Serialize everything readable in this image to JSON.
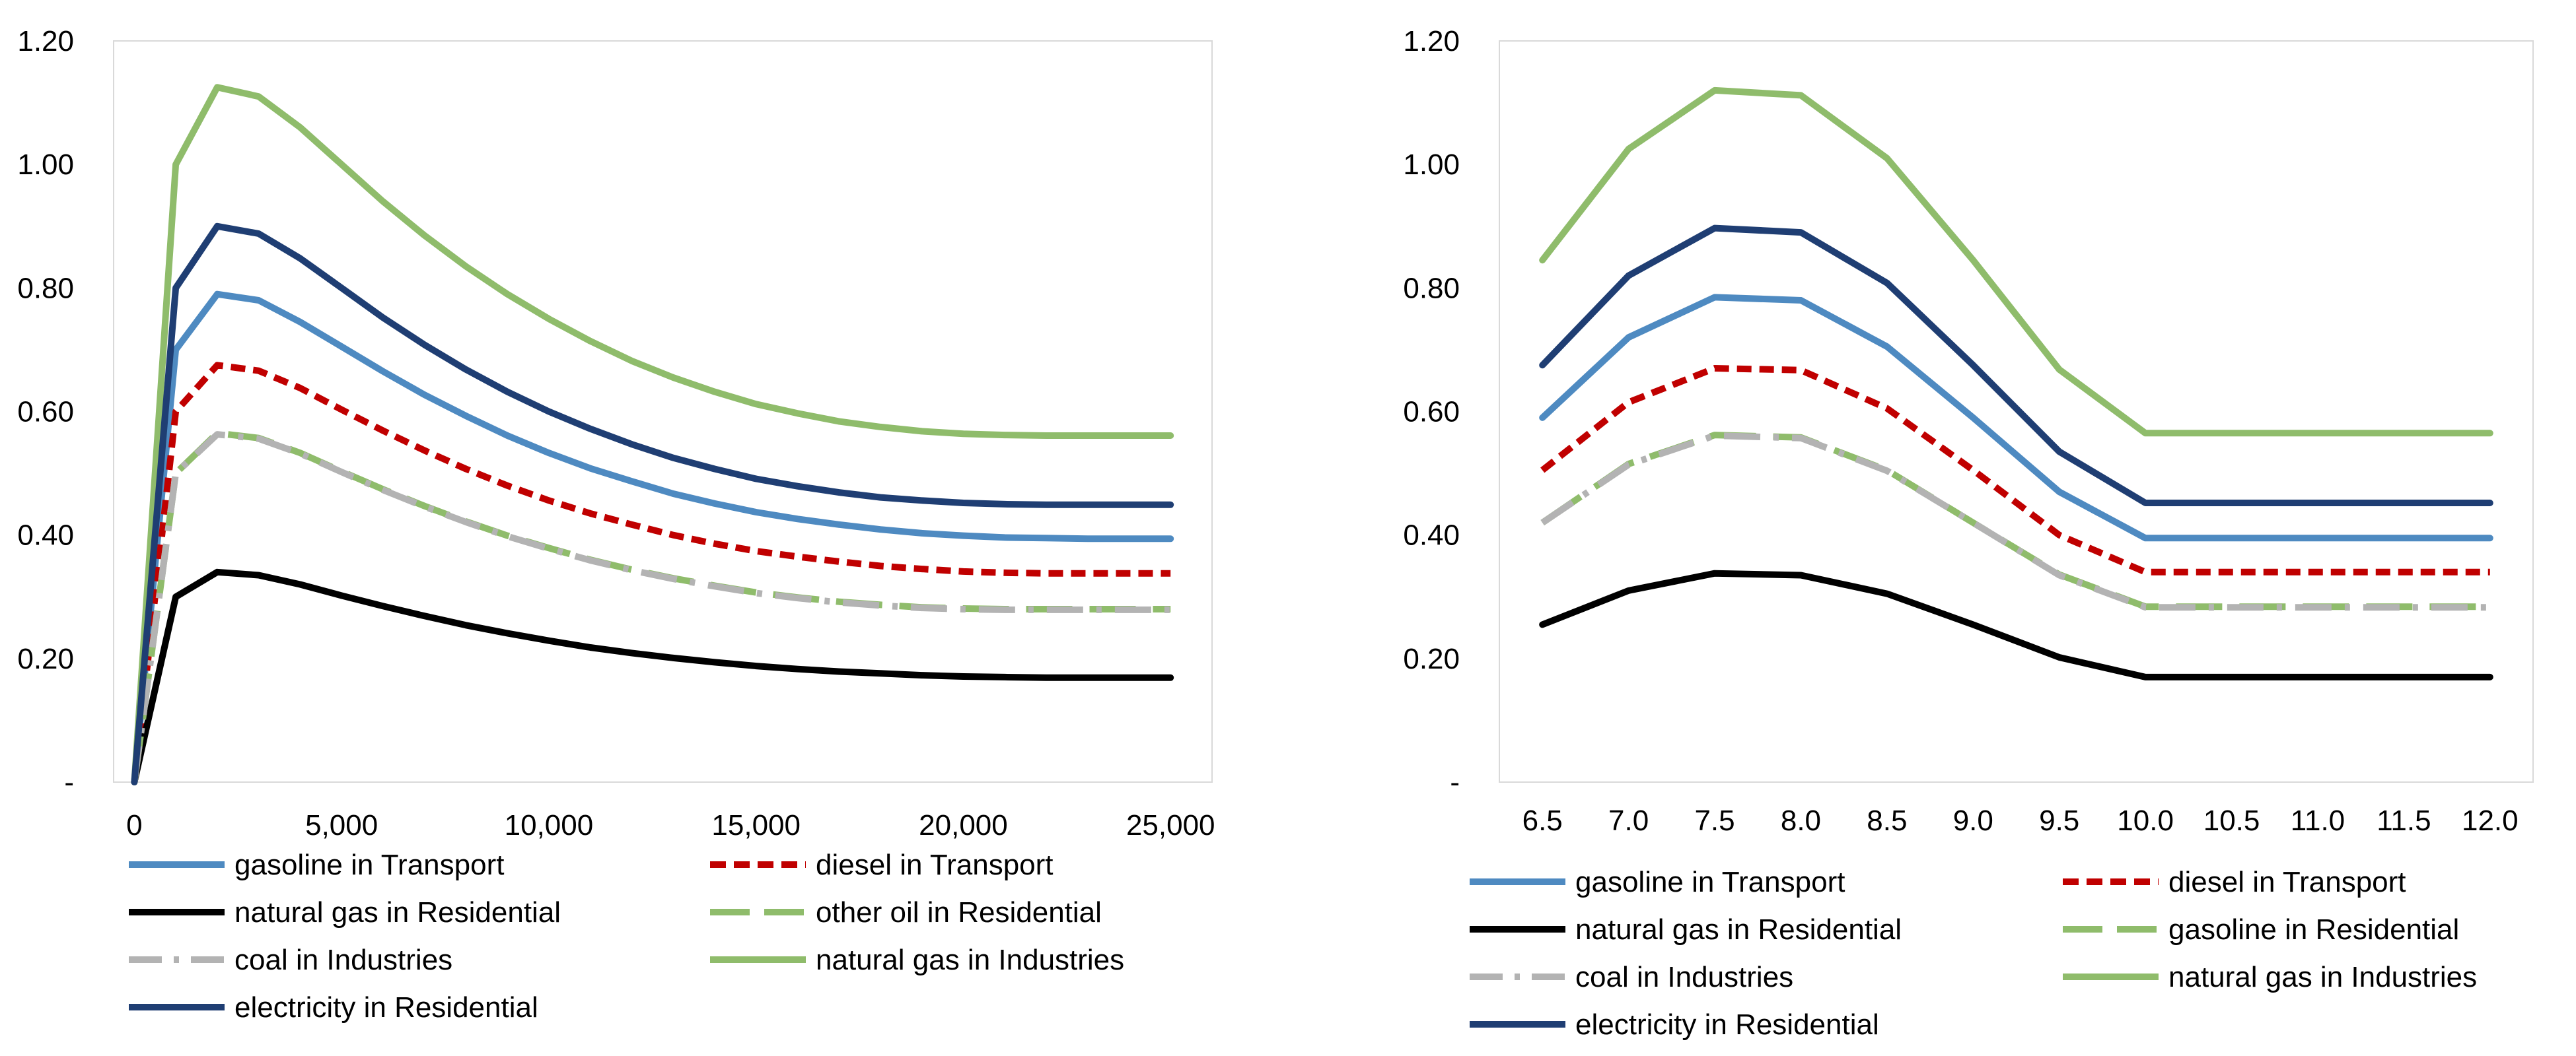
{
  "chart_data": [
    {
      "type": "line",
      "title": "",
      "xlabel": "",
      "ylabel": "",
      "x": [
        0,
        1000,
        2000,
        3000,
        4000,
        5000,
        6000,
        7000,
        8000,
        9000,
        10000,
        11000,
        12000,
        13000,
        14000,
        15000,
        16000,
        17000,
        18000,
        19000,
        20000,
        21000,
        22000,
        23000,
        24000,
        25000
      ],
      "xlim": [
        -500,
        26000
      ],
      "ylim": [
        0,
        1.2
      ],
      "x_ticks": [
        0,
        5000,
        10000,
        15000,
        20000,
        25000
      ],
      "x_tick_labels": [
        "0",
        "5,000",
        "10,000",
        "15,000",
        "20,000",
        "25,000"
      ],
      "y_ticks": [
        0,
        0.2,
        0.4,
        0.6,
        0.8,
        1.0,
        1.2
      ],
      "y_tick_labels": [
        "-",
        "0.20",
        "0.40",
        "0.60",
        "0.80",
        "1.00",
        "1.20"
      ],
      "grid": false,
      "legend_placement": "bottom",
      "series": [
        {
          "name": "gasoline in Transport",
          "color": "#4e8ac1",
          "dash": "solid",
          "values": [
            0,
            0.7,
            0.79,
            0.78,
            0.745,
            0.705,
            0.665,
            0.627,
            0.593,
            0.561,
            0.533,
            0.508,
            0.487,
            0.467,
            0.451,
            0.437,
            0.426,
            0.417,
            0.409,
            0.403,
            0.399,
            0.396,
            0.395,
            0.394,
            0.394,
            0.394
          ]
        },
        {
          "name": "diesel in Transport",
          "color": "#c00000",
          "dash": "dash",
          "values": [
            0,
            0.6,
            0.675,
            0.666,
            0.638,
            0.603,
            0.569,
            0.537,
            0.507,
            0.48,
            0.456,
            0.435,
            0.417,
            0.4,
            0.386,
            0.374,
            0.365,
            0.357,
            0.35,
            0.345,
            0.341,
            0.339,
            0.338,
            0.338,
            0.338,
            0.338
          ]
        },
        {
          "name": "natural gas in Residential",
          "color": "#000000",
          "dash": "solid",
          "values": [
            0,
            0.3,
            0.34,
            0.335,
            0.32,
            0.302,
            0.285,
            0.269,
            0.254,
            0.241,
            0.229,
            0.218,
            0.209,
            0.201,
            0.194,
            0.188,
            0.183,
            0.179,
            0.176,
            0.173,
            0.171,
            0.17,
            0.169,
            0.169,
            0.169,
            0.169
          ]
        },
        {
          "name": "other oil in Residential",
          "color": "#8fbc6b",
          "dash": "longdash",
          "values": [
            0,
            0.5,
            0.565,
            0.557,
            0.533,
            0.503,
            0.474,
            0.447,
            0.422,
            0.399,
            0.379,
            0.36,
            0.344,
            0.33,
            0.318,
            0.307,
            0.299,
            0.292,
            0.287,
            0.283,
            0.281,
            0.28,
            0.28,
            0.28,
            0.28,
            0.28
          ]
        },
        {
          "name": "coal in Industries",
          "color": "#b3b3b3",
          "dash": "dashdot",
          "values": [
            0,
            0.5,
            0.563,
            0.556,
            0.532,
            0.502,
            0.473,
            0.446,
            0.421,
            0.398,
            0.378,
            0.359,
            0.343,
            0.329,
            0.317,
            0.306,
            0.298,
            0.291,
            0.286,
            0.282,
            0.28,
            0.279,
            0.279,
            0.279,
            0.279,
            0.279
          ]
        },
        {
          "name": "natural gas in Industries",
          "color": "#8fbc6b",
          "dash": "solid",
          "values": [
            0,
            1.0,
            1.125,
            1.11,
            1.06,
            1.0,
            0.94,
            0.885,
            0.835,
            0.79,
            0.75,
            0.714,
            0.682,
            0.655,
            0.632,
            0.612,
            0.597,
            0.584,
            0.575,
            0.568,
            0.564,
            0.562,
            0.561,
            0.561,
            0.561,
            0.561
          ]
        },
        {
          "name": " electricity in Residential",
          "color": "#1f3e73",
          "dash": "solid",
          "values": [
            0,
            0.8,
            0.9,
            0.888,
            0.848,
            0.8,
            0.752,
            0.708,
            0.668,
            0.632,
            0.6,
            0.572,
            0.547,
            0.525,
            0.507,
            0.491,
            0.479,
            0.469,
            0.461,
            0.456,
            0.452,
            0.45,
            0.449,
            0.449,
            0.449,
            0.449
          ]
        }
      ]
    },
    {
      "type": "line",
      "title": "",
      "xlabel": "",
      "ylabel": "",
      "categories": [
        "6.5",
        "7.0",
        "7.5",
        "8.0",
        "8.5",
        "9.0",
        "9.5",
        "10.0",
        "10.5",
        "11.0",
        "11.5",
        "12.0"
      ],
      "ylim": [
        0,
        1.2
      ],
      "y_ticks": [
        0,
        0.2,
        0.4,
        0.6,
        0.8,
        1.0,
        1.2
      ],
      "y_tick_labels": [
        "-",
        "0.20",
        "0.40",
        "0.60",
        "0.80",
        "1.00",
        "1.20"
      ],
      "grid": false,
      "legend_placement": "bottom",
      "series": [
        {
          "name": "gasoline in Transport",
          "color": "#4e8ac1",
          "dash": "solid",
          "values": [
            0.59,
            0.72,
            0.785,
            0.78,
            0.705,
            0.59,
            0.47,
            0.395,
            0.395,
            0.395,
            0.395,
            0.395
          ]
        },
        {
          "name": "diesel in Transport",
          "color": "#c00000",
          "dash": "dash",
          "values": [
            0.505,
            0.615,
            0.67,
            0.667,
            0.605,
            0.505,
            0.4,
            0.34,
            0.34,
            0.34,
            0.34,
            0.34
          ]
        },
        {
          "name": "natural gas in Residential",
          "color": "#000000",
          "dash": "solid",
          "values": [
            0.255,
            0.31,
            0.338,
            0.335,
            0.305,
            0.255,
            0.202,
            0.17,
            0.17,
            0.17,
            0.17,
            0.17
          ]
        },
        {
          "name": "gasoline in Residential",
          "color": "#8fbc6b",
          "dash": "longdash",
          "values": [
            0.42,
            0.515,
            0.562,
            0.558,
            0.505,
            0.42,
            0.336,
            0.284,
            0.284,
            0.284,
            0.284,
            0.284
          ]
        },
        {
          "name": "coal in Industries",
          "color": "#b3b3b3",
          "dash": "dashdot",
          "values": [
            0.42,
            0.514,
            0.561,
            0.557,
            0.504,
            0.42,
            0.335,
            0.283,
            0.283,
            0.283,
            0.283,
            0.283
          ]
        },
        {
          "name": "natural gas in Industries",
          "color": "#8fbc6b",
          "dash": "solid",
          "values": [
            0.845,
            1.025,
            1.12,
            1.112,
            1.01,
            0.845,
            0.668,
            0.565,
            0.565,
            0.565,
            0.565,
            0.565
          ]
        },
        {
          "name": "electricity in Residential",
          "color": "#1f3e73",
          "dash": "solid",
          "values": [
            0.675,
            0.82,
            0.897,
            0.89,
            0.808,
            0.675,
            0.535,
            0.452,
            0.452,
            0.452,
            0.452,
            0.452
          ]
        }
      ]
    }
  ]
}
